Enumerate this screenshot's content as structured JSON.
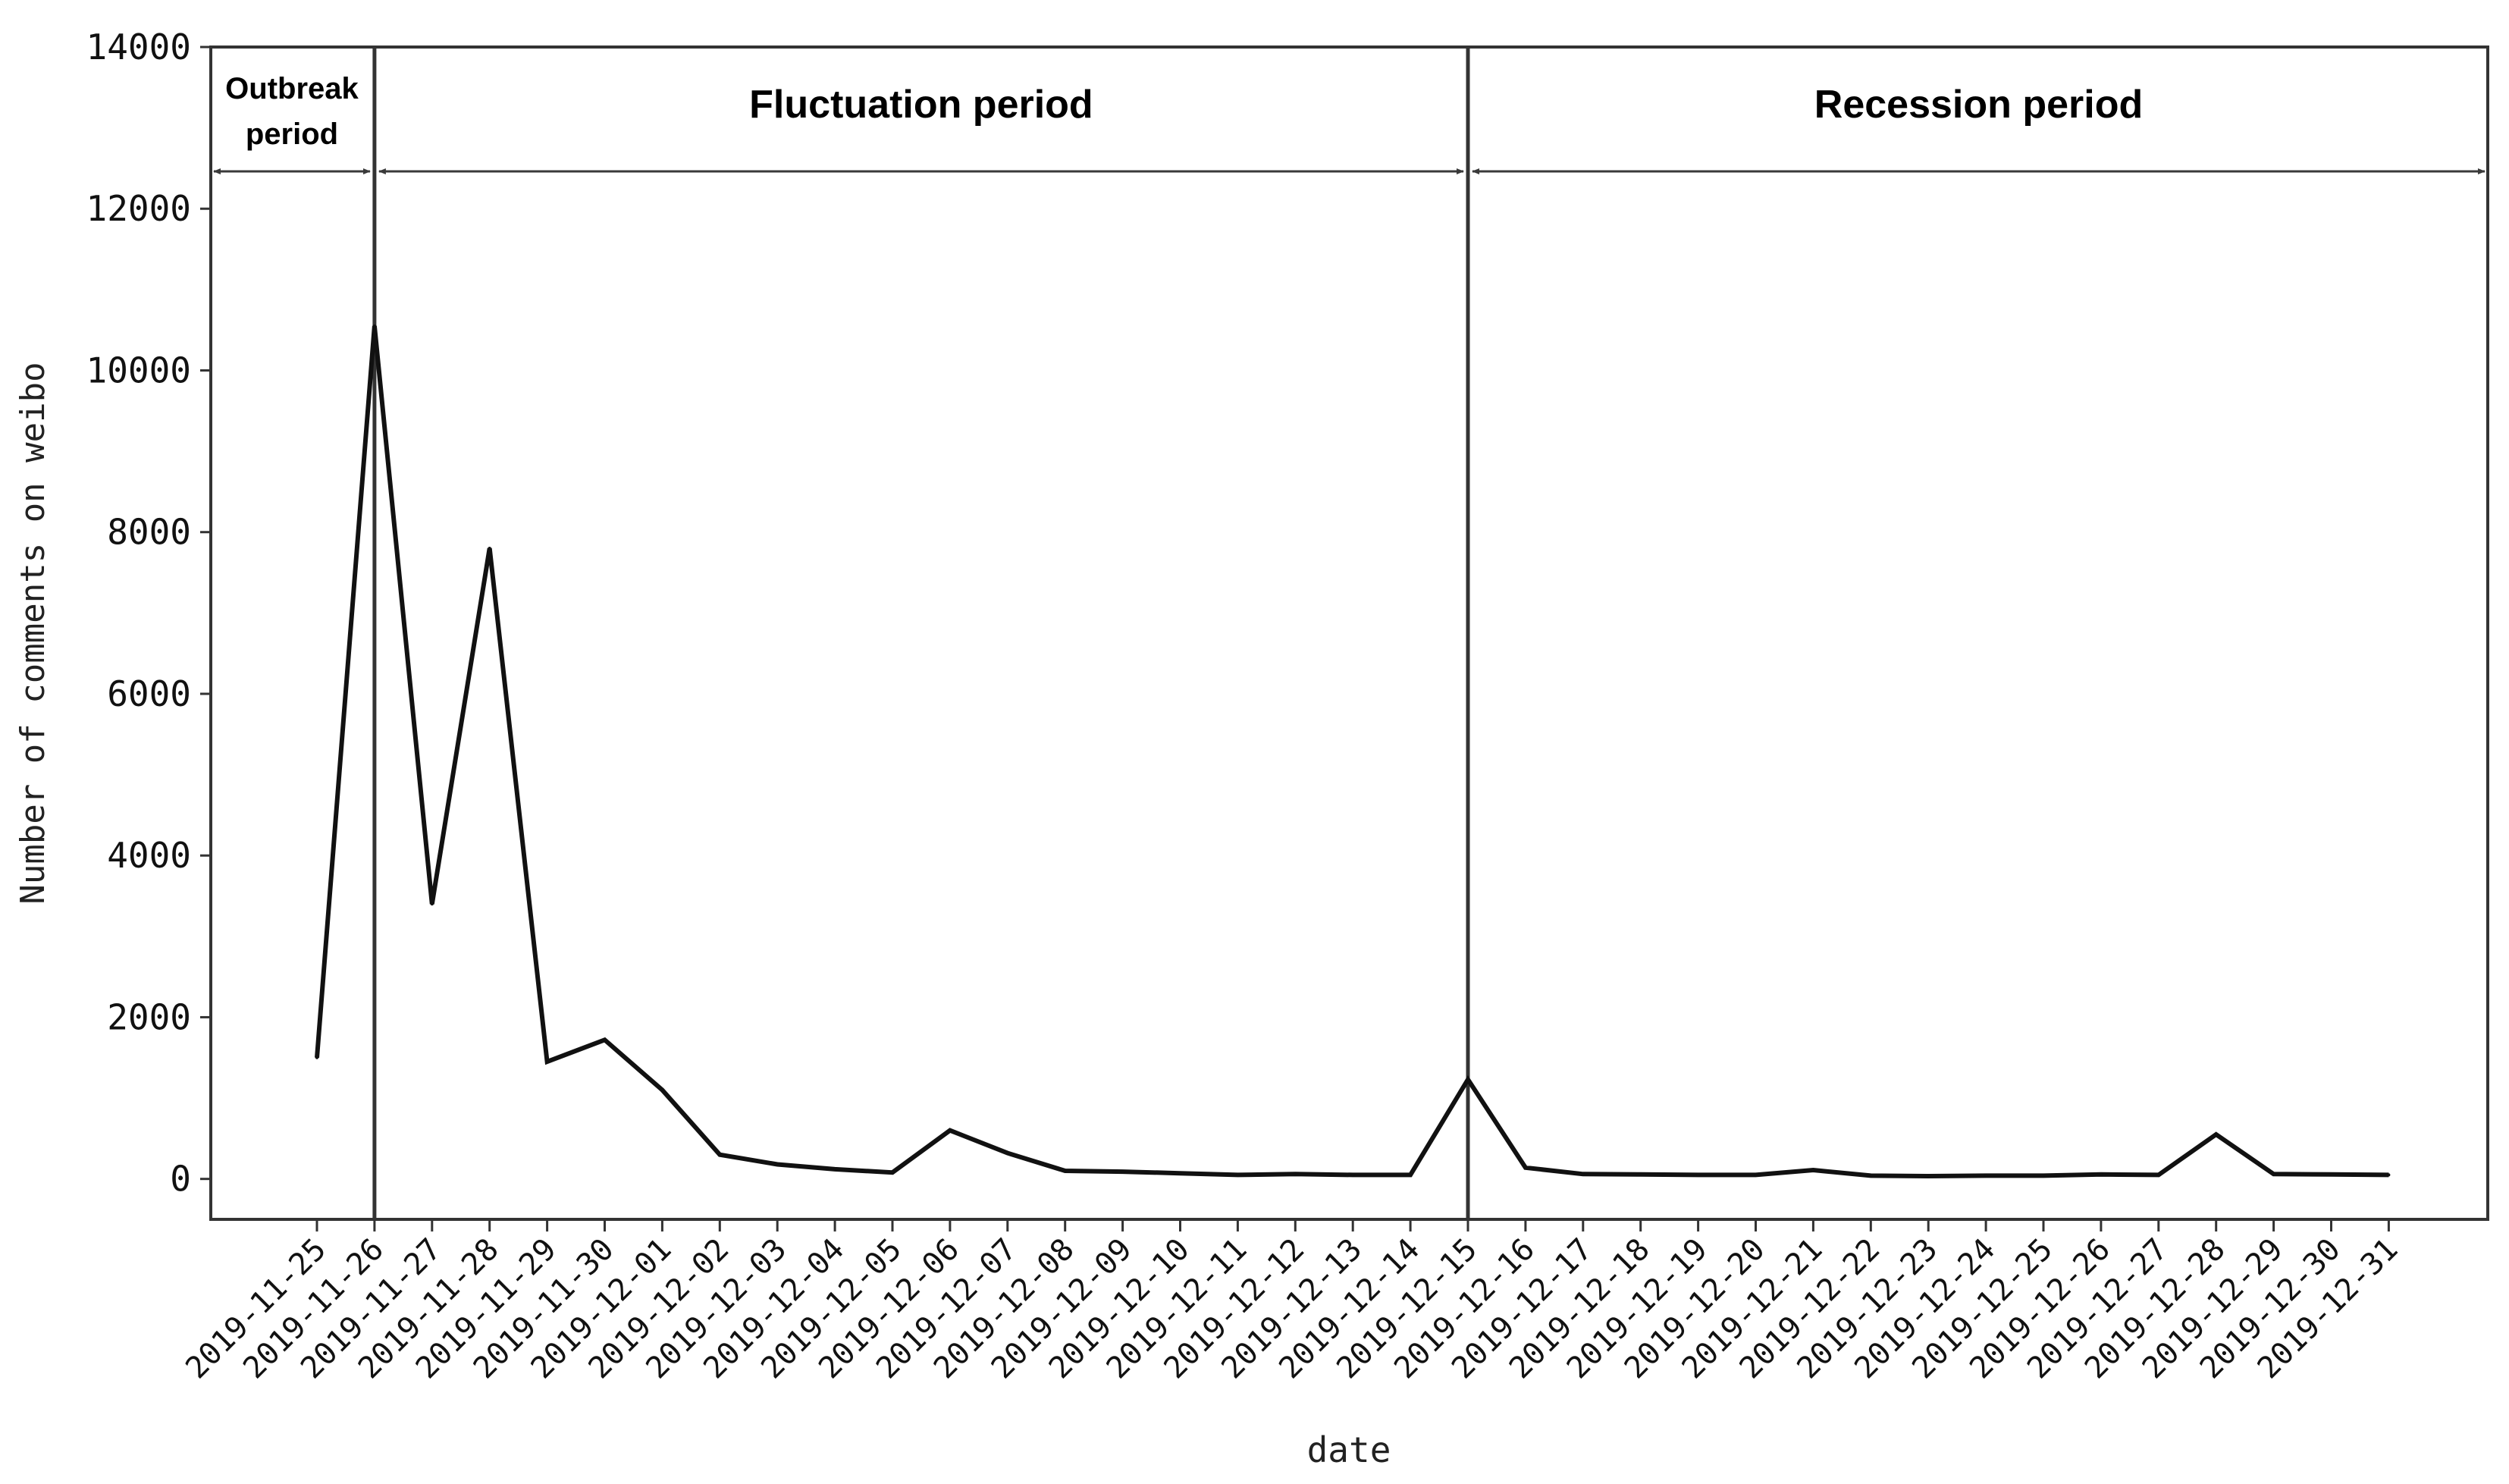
{
  "chart_data": {
    "type": "line",
    "title": "",
    "xlabel": "date",
    "ylabel": "Number of comments on weibo",
    "ylim": [
      -500,
      14000
    ],
    "yticks": [
      0,
      2000,
      4000,
      6000,
      8000,
      10000,
      12000,
      14000
    ],
    "grid": false,
    "legend": "none",
    "categories": [
      "2019-11-25",
      "2019-11-26",
      "2019-11-27",
      "2019-11-28",
      "2019-11-29",
      "2019-11-30",
      "2019-12-01",
      "2019-12-02",
      "2019-12-03",
      "2019-12-04",
      "2019-12-05",
      "2019-12-06",
      "2019-12-07",
      "2019-12-08",
      "2019-12-09",
      "2019-12-10",
      "2019-12-11",
      "2019-12-12",
      "2019-12-13",
      "2019-12-14",
      "2019-12-15",
      "2019-12-16",
      "2019-12-17",
      "2019-12-18",
      "2019-12-19",
      "2019-12-20",
      "2019-12-21",
      "2019-12-22",
      "2019-12-23",
      "2019-12-24",
      "2019-12-25",
      "2019-12-26",
      "2019-12-27",
      "2019-12-28",
      "2019-12-29",
      "2019-12-30",
      "2019-12-31"
    ],
    "series": [
      {
        "values": [
          1500,
          10550,
          3400,
          7800,
          1450,
          1720,
          1100,
          300,
          180,
          120,
          80,
          600,
          320,
          100,
          90,
          70,
          50,
          60,
          50,
          50,
          1230,
          140,
          60,
          55,
          50,
          50,
          110,
          40,
          35,
          40,
          40,
          55,
          50,
          550,
          60,
          55,
          50
        ],
        "color": "#111111"
      }
    ],
    "periods": [
      {
        "label_lines": [
          "Outbreak",
          "period"
        ],
        "start": "2019-11-25",
        "end": "2019-11-26"
      },
      {
        "label_lines": [
          "Fluctuation period"
        ],
        "start": "2019-11-26",
        "end": "2019-12-15"
      },
      {
        "label_lines": [
          "Recession period"
        ],
        "start": "2019-12-15",
        "end": "2019-12-31"
      }
    ],
    "dividers": [
      "2019-11-26",
      "2019-12-15"
    ],
    "colors": {
      "line": "#111111",
      "axis": "#333333",
      "arrow": "#3a3a3a"
    }
  }
}
